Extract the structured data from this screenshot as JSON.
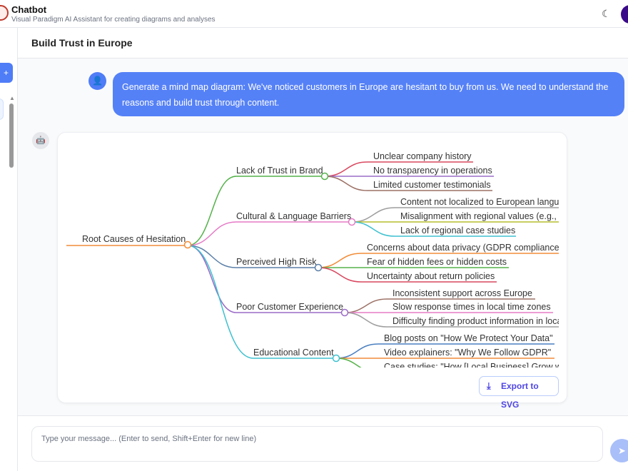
{
  "app": {
    "title": "Chatbot",
    "subtitle": "Visual Paradigm AI Assistant for creating diagrams and analyses"
  },
  "chat": {
    "title": "Build Trust in Europe"
  },
  "user_message": "Generate a mind map diagram: We've noticed customers in Europe are hesitant to buy from us. We need to understand the reasons and build trust through content.",
  "mindmap": {
    "root": {
      "label": "Root Causes of Hesitation",
      "color": "#f28c38"
    },
    "branches": [
      {
        "label": "Lack of Trust in Brand",
        "color": "#55b24a",
        "children": [
          {
            "label": "Unclear company history",
            "color": "#d9485f"
          },
          {
            "label": "No transparency in operations",
            "color": "#9b6cc7"
          },
          {
            "label": "Limited customer testimonials",
            "color": "#9c7065"
          }
        ]
      },
      {
        "label": "Cultural & Language Barriers",
        "color": "#e57ac6",
        "children": [
          {
            "label": "Content not localized to European langua",
            "color": "#9e9e9e"
          },
          {
            "label": "Misalignment with regional values (e.g., p",
            "color": "#b5bd2f"
          },
          {
            "label": "Lack of regional case studies",
            "color": "#3fc1d0"
          }
        ]
      },
      {
        "label": "Perceived High Risk",
        "color": "#5b7fa8",
        "children": [
          {
            "label": "Concerns about data privacy (GDPR compliance)",
            "color": "#f28c38"
          },
          {
            "label": "Fear of hidden fees or hidden costs",
            "color": "#55b24a"
          },
          {
            "label": "Uncertainty about return policies",
            "color": "#d9485f"
          }
        ]
      },
      {
        "label": "Poor Customer Experience",
        "color": "#9b6cc7",
        "children": [
          {
            "label": "Inconsistent support across Europe",
            "color": "#9c7065"
          },
          {
            "label": "Slow response times in local time zones",
            "color": "#e57ac6"
          },
          {
            "label": "Difficulty finding product information in loca",
            "color": "#9e9e9e"
          }
        ]
      },
      {
        "label": "Educational Content",
        "color": "#3fc1d0",
        "children": [
          {
            "label": "Blog posts on \"How We Protect Your Data\"",
            "color": "#4a7fc1"
          },
          {
            "label": "Video explainers: \"Why We Follow GDPR\"",
            "color": "#f28c38"
          },
          {
            "label": "Case studies: \"How [Local Business] Grow w",
            "color": "#55b24a"
          }
        ]
      }
    ]
  },
  "export_label": "Export to SVG",
  "input": {
    "placeholder": "Type your message... (Enter to send, Shift+Enter for new line)"
  },
  "icons": {
    "theme": "moon-icon",
    "send": "send-icon",
    "export": "download-icon",
    "user": "user-icon",
    "bot": "robot-icon"
  },
  "colors": {
    "accent": "#5581f7",
    "export_text": "#4f46e5"
  }
}
